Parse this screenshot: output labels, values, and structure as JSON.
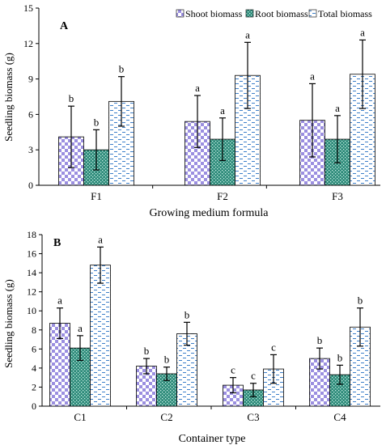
{
  "legend": [
    {
      "label": "Shoot biomass",
      "pattern": "shoot"
    },
    {
      "label": "Root biomass",
      "pattern": "root"
    },
    {
      "label": "Total biomass",
      "pattern": "total"
    }
  ],
  "colors": {
    "shoot": "#9b8fe0",
    "root": "#2e8b7a",
    "total": "#3d7fc9",
    "axis": "#000000"
  },
  "chart_data": [
    {
      "type": "bar",
      "panel_label": "A",
      "categories": [
        "F1",
        "F2",
        "F3"
      ],
      "xlabel": "Growing medium formula",
      "ylabel": "Seedling biomass (g)",
      "ylim": [
        0,
        15
      ],
      "yticks": [
        0,
        3,
        6,
        9,
        12,
        15
      ],
      "legend_position": "top-right",
      "series": [
        {
          "name": "Shoot biomass",
          "values": [
            4.1,
            5.4,
            5.5
          ],
          "errors": [
            2.6,
            2.2,
            3.1
          ],
          "letters": [
            "b",
            "a",
            "a"
          ]
        },
        {
          "name": "Root biomass",
          "values": [
            3.0,
            3.9,
            3.9
          ],
          "errors": [
            1.7,
            1.8,
            2.0
          ],
          "letters": [
            "b",
            "a",
            "a"
          ]
        },
        {
          "name": "Total biomass",
          "values": [
            7.1,
            9.3,
            9.4
          ],
          "errors": [
            2.1,
            2.8,
            2.9
          ],
          "letters": [
            "b",
            "a",
            "a"
          ]
        }
      ]
    },
    {
      "type": "bar",
      "panel_label": "B",
      "categories": [
        "C1",
        "C2",
        "C3",
        "C4"
      ],
      "xlabel": "Container type",
      "ylabel": "Seedling biomass (g)",
      "ylim": [
        0,
        18
      ],
      "yticks": [
        0,
        2,
        4,
        6,
        8,
        10,
        12,
        14,
        16,
        18
      ],
      "series": [
        {
          "name": "Shoot biomass",
          "values": [
            8.7,
            4.2,
            2.2,
            5.0
          ],
          "errors": [
            1.6,
            0.8,
            0.8,
            1.1
          ],
          "letters": [
            "a",
            "b",
            "c",
            "b"
          ]
        },
        {
          "name": "Root biomass",
          "values": [
            6.1,
            3.4,
            1.7,
            3.3
          ],
          "errors": [
            1.3,
            0.7,
            0.7,
            1.0
          ],
          "letters": [
            "a",
            "b",
            "c",
            "b"
          ]
        },
        {
          "name": "Total biomass",
          "values": [
            14.8,
            7.6,
            3.9,
            8.3
          ],
          "errors": [
            1.9,
            1.2,
            1.5,
            2.0
          ],
          "letters": [
            "a",
            "b",
            "c",
            "b"
          ]
        }
      ]
    }
  ]
}
